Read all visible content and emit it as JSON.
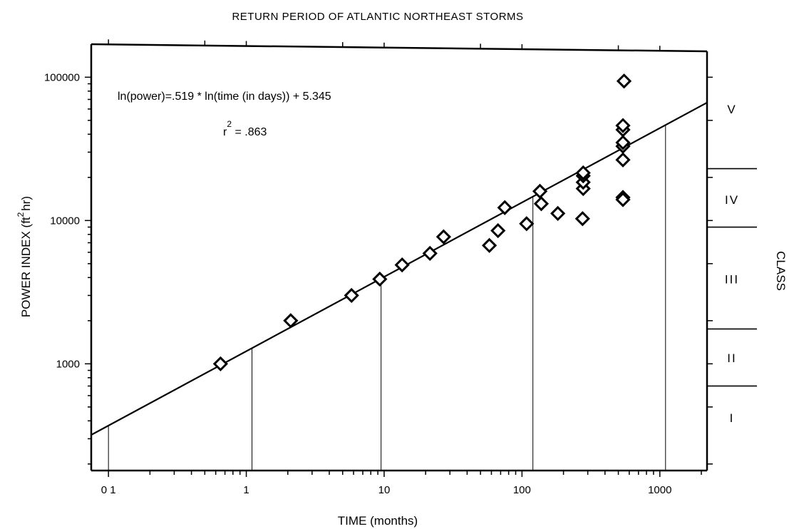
{
  "chart_data": {
    "type": "scatter",
    "title": "RETURN PERIOD OF ATLANTIC NORTHEAST STORMS",
    "xlabel": "TIME (months)",
    "ylabel": "POWER INDEX (ft² hr)",
    "ylabel_main": "POWER INDEX (ft",
    "ylabel_sup": "2",
    "ylabel_end": "hr)",
    "right_label": "CLASS",
    "x_scale": "log",
    "y_scale": "log",
    "xlim": [
      0.075,
      2200
    ],
    "ylim": [
      180,
      170000
    ],
    "x_ticks": [
      0.1,
      1,
      10,
      100,
      1000
    ],
    "x_tick_labels": [
      "0 1",
      "1",
      "10",
      "100",
      "1000"
    ],
    "y_ticks": [
      1000,
      10000,
      100000
    ],
    "y_tick_labels": [
      "1000",
      "10000",
      "100000"
    ],
    "equation": "ln(power)=.519 * ln(time (in days)) + 5.345",
    "r2_label": "r",
    "r2_sup": "2",
    "r2_value": " = .863",
    "fit_line": {
      "slope": 0.519,
      "intercept": 5.345,
      "x_days_per_month": 30,
      "x_range": [
        0.075,
        2200
      ]
    },
    "return_period_lines_x": [
      0.1,
      1.1,
      9.5,
      120,
      1100
    ],
    "class_boundaries_y": [
      700,
      1750,
      9000,
      23000
    ],
    "classes": [
      {
        "label": "I",
        "y": 420
      },
      {
        "label": "II",
        "y": 1100
      },
      {
        "label": "III",
        "y": 3900
      },
      {
        "label": "IV",
        "y": 14000
      },
      {
        "label": "V",
        "y": 60000
      }
    ],
    "points": [
      {
        "x": 0.65,
        "y": 1000
      },
      {
        "x": 2.1,
        "y": 2000
      },
      {
        "x": 5.8,
        "y": 3000
      },
      {
        "x": 9.3,
        "y": 3900
      },
      {
        "x": 13.5,
        "y": 4900
      },
      {
        "x": 21.5,
        "y": 5900
      },
      {
        "x": 27,
        "y": 7700
      },
      {
        "x": 58,
        "y": 6700
      },
      {
        "x": 67,
        "y": 8500
      },
      {
        "x": 75,
        "y": 12300
      },
      {
        "x": 108,
        "y": 9500
      },
      {
        "x": 135,
        "y": 16000
      },
      {
        "x": 138,
        "y": 13100
      },
      {
        "x": 182,
        "y": 11200
      },
      {
        "x": 275,
        "y": 10300
      },
      {
        "x": 278,
        "y": 16700
      },
      {
        "x": 278,
        "y": 18500
      },
      {
        "x": 278,
        "y": 20500
      },
      {
        "x": 278,
        "y": 21500
      },
      {
        "x": 540,
        "y": 14500
      },
      {
        "x": 540,
        "y": 14000
      },
      {
        "x": 540,
        "y": 26500
      },
      {
        "x": 540,
        "y": 33000
      },
      {
        "x": 540,
        "y": 35000
      },
      {
        "x": 540,
        "y": 43000
      },
      {
        "x": 540,
        "y": 46000
      },
      {
        "x": 550,
        "y": 94000
      }
    ]
  }
}
